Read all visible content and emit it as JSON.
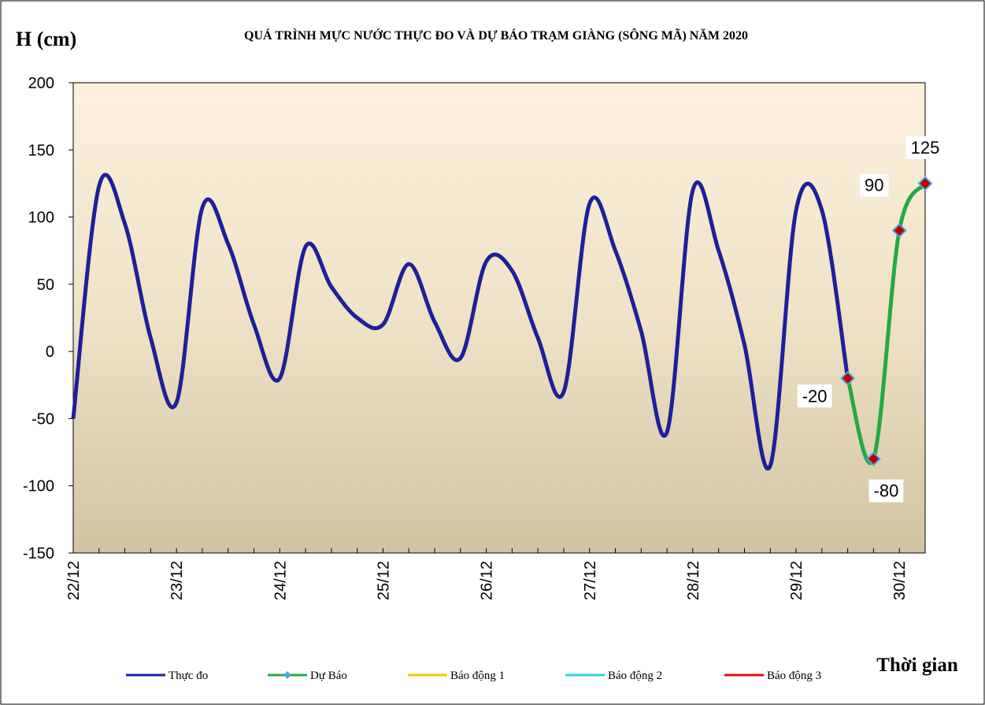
{
  "chart_data": {
    "type": "line",
    "title": "QUÁ TRÌNH MỰC NƯỚC THỰC ĐO VÀ DỰ BÁO TRẠM GIÀNG (SÔNG MÃ) NĂM 2020",
    "y_label": "H (cm)",
    "x_label": "Thời gian",
    "categories": [
      "22/12",
      null,
      null,
      null,
      "23/12",
      null,
      null,
      null,
      "24/12",
      null,
      null,
      null,
      "25/12",
      null,
      null,
      null,
      "26/12",
      null,
      null,
      null,
      "27/12",
      null,
      null,
      null,
      "28/12",
      null,
      null,
      null,
      "29/12",
      null,
      null,
      null,
      "30/12",
      null
    ],
    "ylim": [
      -150,
      200
    ],
    "yticks": [
      -150,
      -100,
      -50,
      0,
      50,
      100,
      150,
      200
    ],
    "series": [
      {
        "name": "Thực đo",
        "color": "#1f1f9a",
        "values": [
          -50,
          123,
          95,
          10,
          -38,
          107,
          80,
          20,
          -20,
          78,
          48,
          25,
          20,
          65,
          22,
          -5,
          67,
          60,
          10,
          -30,
          110,
          75,
          15,
          -60,
          120,
          75,
          5,
          -85,
          105,
          105,
          -20,
          null,
          null,
          null
        ]
      },
      {
        "name": "Dự Báo",
        "color": "#22aa44",
        "marker": "diamond",
        "data_labels": true,
        "values": [
          null,
          null,
          null,
          null,
          null,
          null,
          null,
          null,
          null,
          null,
          null,
          null,
          null,
          null,
          null,
          null,
          null,
          null,
          null,
          null,
          null,
          null,
          null,
          null,
          null,
          null,
          null,
          null,
          null,
          null,
          -20,
          -80,
          90,
          125
        ]
      },
      {
        "name": "Báo động 1",
        "color": "#ffc000",
        "values": [
          null,
          null,
          null,
          null,
          null,
          null,
          null,
          null,
          null,
          null,
          null,
          null,
          null,
          null,
          null,
          null,
          null,
          null,
          null,
          null,
          null,
          null,
          null,
          null,
          null,
          null,
          null,
          null,
          null,
          null,
          null,
          null,
          null,
          null
        ]
      },
      {
        "name": "Báo động 2",
        "color": "#33ccee",
        "values": [
          null,
          null,
          null,
          null,
          null,
          null,
          null,
          null,
          null,
          null,
          null,
          null,
          null,
          null,
          null,
          null,
          null,
          null,
          null,
          null,
          null,
          null,
          null,
          null,
          null,
          null,
          null,
          null,
          null,
          null,
          null,
          null,
          null,
          null
        ]
      },
      {
        "name": "Báo động 3",
        "color": "#dd1111",
        "values": [
          null,
          null,
          null,
          null,
          null,
          null,
          null,
          null,
          null,
          null,
          null,
          null,
          null,
          null,
          null,
          null,
          null,
          null,
          null,
          null,
          null,
          null,
          null,
          null,
          null,
          null,
          null,
          null,
          null,
          null,
          null,
          null,
          null,
          null
        ]
      }
    ]
  }
}
